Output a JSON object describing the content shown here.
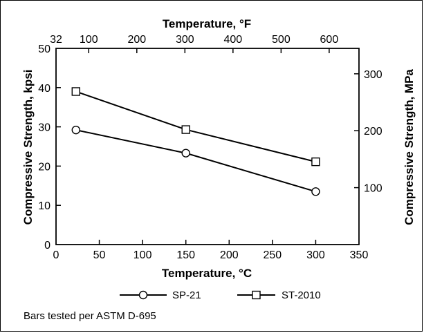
{
  "chart_data": {
    "type": "line",
    "x": [
      23,
      150,
      300
    ],
    "series": [
      {
        "name": "SP-21",
        "marker": "circle",
        "values": [
          29.2,
          23.3,
          13.5
        ]
      },
      {
        "name": "ST-2010",
        "marker": "square",
        "values": [
          39.0,
          29.3,
          21.1
        ]
      }
    ],
    "xlabel": "Temperature, °C",
    "ylabel": "Compressive Strength, kpsi",
    "x2label": "Temperature, °F",
    "y2label": "Compressive Strength, MPa",
    "xlim": [
      0,
      350
    ],
    "ylim": [
      0,
      50
    ],
    "x2lim": [
      32,
      662
    ],
    "y2lim": [
      0,
      344.7
    ],
    "xticks": [
      "0",
      "50",
      "100",
      "150",
      "200",
      "250",
      "300",
      "350"
    ],
    "yticks": [
      "0",
      "10",
      "20",
      "30",
      "40",
      "50"
    ],
    "x2ticks": [
      "32",
      "100",
      "200",
      "300",
      "400",
      "500",
      "600"
    ],
    "y2ticks": [
      "100",
      "200",
      "300"
    ],
    "grid": false,
    "legend": "bottom"
  },
  "footnote": "Bars tested per ASTM D-695"
}
